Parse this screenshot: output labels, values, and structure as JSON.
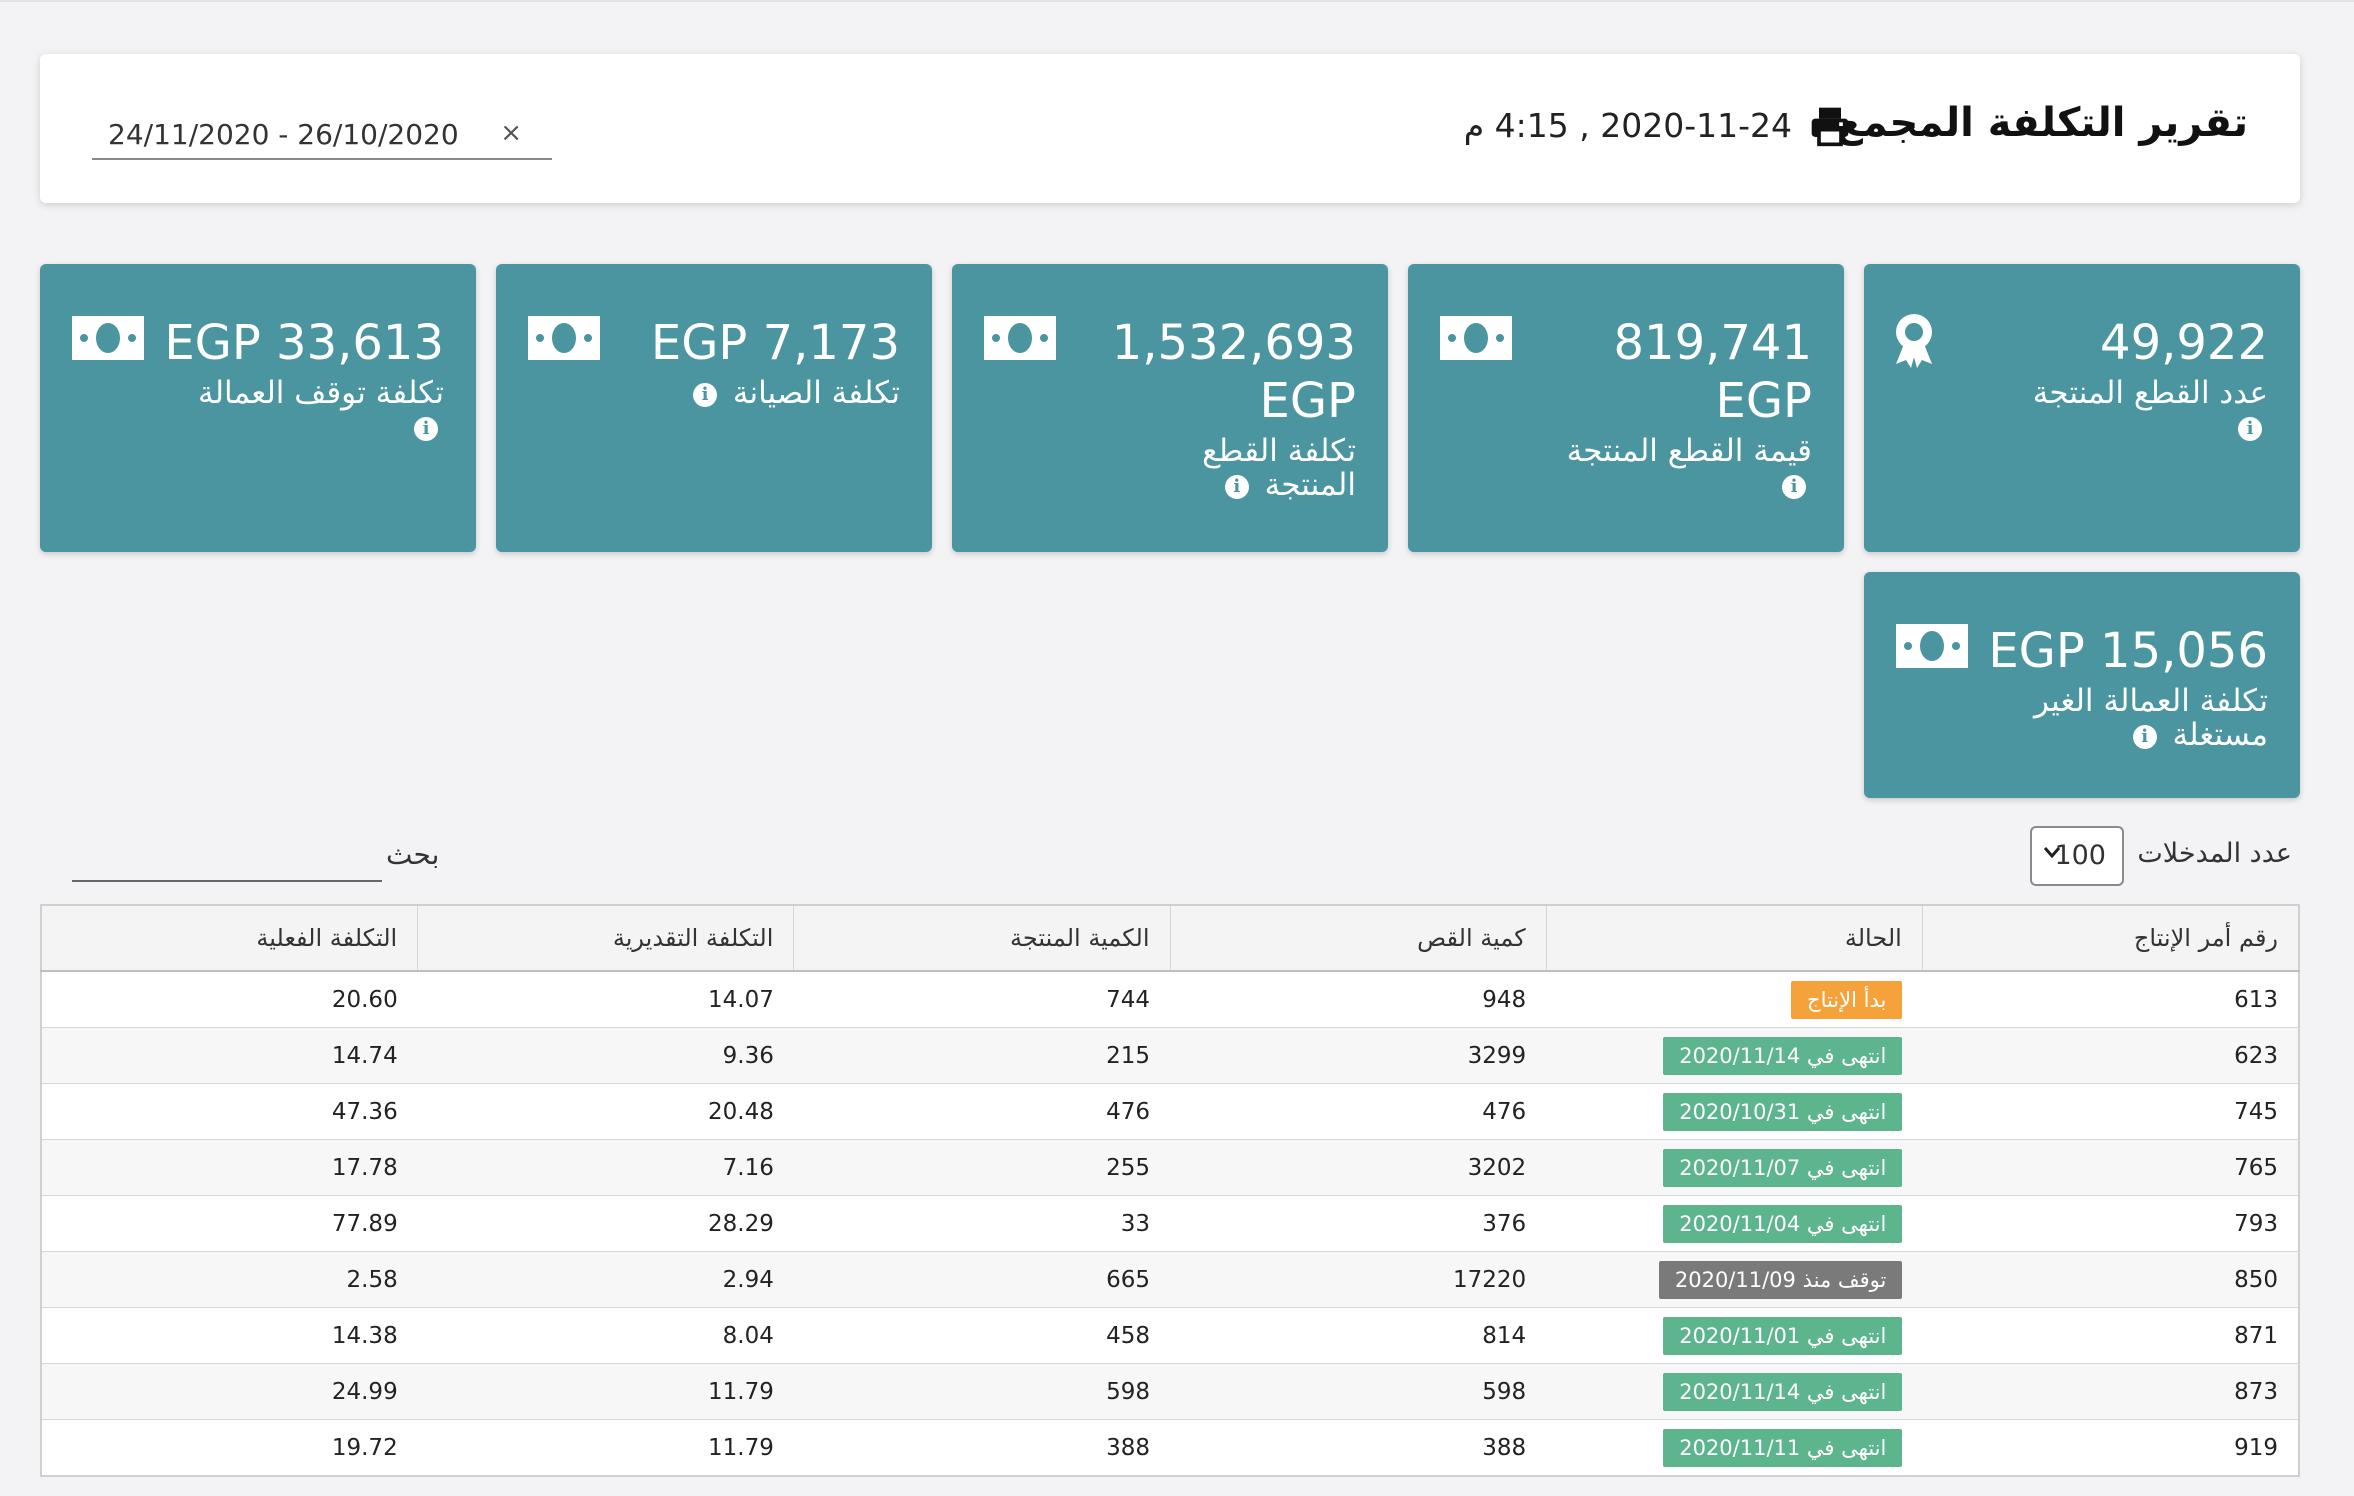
{
  "header": {
    "title": "تقرير التكلفة المجمع",
    "datetime": "2020-11-24 , 4:15 م",
    "date_range": "24/11/2020  -  26/10/2020",
    "clear_symbol": "×"
  },
  "kpis": [
    {
      "value": "49,922",
      "label": "عدد القطع المنتجة",
      "icon": "award-icon"
    },
    {
      "value": "819,741 EGP",
      "label": "قيمة القطع المنتجة",
      "icon": "money-icon"
    },
    {
      "value": "1,532,693 EGP",
      "label": "تكلفة القطع المنتجة",
      "icon": "money-icon"
    },
    {
      "value": "EGP 7,173",
      "label": "تكلفة الصيانة",
      "icon": "money-icon"
    },
    {
      "value": "EGP 33,613",
      "label": "تكلفة توقف العمالة",
      "icon": "money-icon"
    },
    {
      "value": "EGP 15,056",
      "label": "تكلفة العمالة الغير مستغلة",
      "icon": "money-icon"
    }
  ],
  "controls": {
    "entries_label": "عدد المدخلات",
    "entries_value": "100",
    "search_label": "بحث"
  },
  "table": {
    "headers": [
      "رقم أمر الإنتاج",
      "الحالة",
      "كمية القص",
      "الكمية المنتجة",
      "التكلفة التقديرية",
      "التكلفة الفعلية"
    ],
    "rows": [
      {
        "order": "613",
        "status": "بدأ الإنتاج",
        "status_type": "started",
        "cut": "948",
        "produced": "744",
        "estimated": "14.07",
        "actual": "20.60"
      },
      {
        "order": "623",
        "status": "انتهى في 2020/11/14",
        "status_type": "done",
        "cut": "3299",
        "produced": "215",
        "estimated": "9.36",
        "actual": "14.74"
      },
      {
        "order": "745",
        "status": "انتهى في 2020/10/31",
        "status_type": "done",
        "cut": "476",
        "produced": "476",
        "estimated": "20.48",
        "actual": "47.36"
      },
      {
        "order": "765",
        "status": "انتهى في 2020/11/07",
        "status_type": "done",
        "cut": "3202",
        "produced": "255",
        "estimated": "7.16",
        "actual": "17.78"
      },
      {
        "order": "793",
        "status": "انتهى في 2020/11/04",
        "status_type": "done",
        "cut": "376",
        "produced": "33",
        "estimated": "28.29",
        "actual": "77.89"
      },
      {
        "order": "850",
        "status": "توقف منذ 2020/11/09",
        "status_type": "stopped",
        "cut": "17220",
        "produced": "665",
        "estimated": "2.94",
        "actual": "2.58"
      },
      {
        "order": "871",
        "status": "انتهى في 2020/11/01",
        "status_type": "done",
        "cut": "814",
        "produced": "458",
        "estimated": "8.04",
        "actual": "14.38"
      },
      {
        "order": "873",
        "status": "انتهى في 2020/11/14",
        "status_type": "done",
        "cut": "598",
        "produced": "598",
        "estimated": "11.79",
        "actual": "24.99"
      },
      {
        "order": "919",
        "status": "انتهى في 2020/11/11",
        "status_type": "done",
        "cut": "388",
        "produced": "388",
        "estimated": "11.79",
        "actual": "19.72"
      }
    ]
  },
  "colors": {
    "card": "#4a95a0",
    "started": "#f5a23a",
    "done": "#5cb58c",
    "stopped": "#7a7a7a"
  }
}
